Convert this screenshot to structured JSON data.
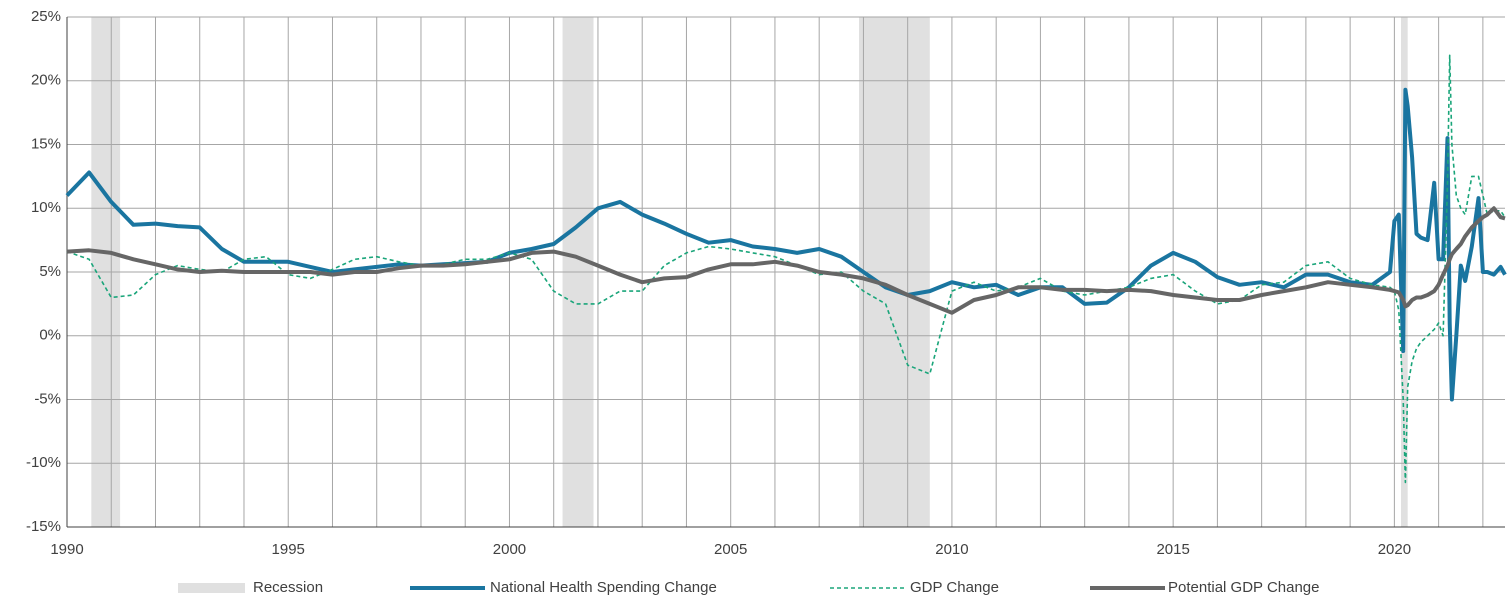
{
  "chart_data": {
    "type": "line",
    "x": [
      1990,
      1990.5,
      1991,
      1991.5,
      1992,
      1992.5,
      1993,
      1993.5,
      1994,
      1994.5,
      1995,
      1995.5,
      1996,
      1996.5,
      1997,
      1997.5,
      1998,
      1998.5,
      1999,
      1999.5,
      2000,
      2000.5,
      2001,
      2001.5,
      2002,
      2002.5,
      2003,
      2003.5,
      2004,
      2004.5,
      2005,
      2005.5,
      2006,
      2006.5,
      2007,
      2007.5,
      2008,
      2008.5,
      2009,
      2009.5,
      2010,
      2010.5,
      2011,
      2011.5,
      2012,
      2012.5,
      2013,
      2013.5,
      2014,
      2014.5,
      2015,
      2015.5,
      2016,
      2016.5,
      2017,
      2017.5,
      2018,
      2018.5,
      2019,
      2019.5,
      2019.9,
      2020,
      2020.1,
      2020.2,
      2020.25,
      2020.3,
      2020.4,
      2020.5,
      2020.6,
      2020.75,
      2020.9,
      2021,
      2021.1,
      2021.2,
      2021.25,
      2021.3,
      2021.4,
      2021.5,
      2021.6,
      2021.75,
      2021.9,
      2022,
      2022.1,
      2022.25,
      2022.4,
      2022.5
    ],
    "series": [
      {
        "name": "National Health Spending Change",
        "color": "#1a75a0",
        "line_width": 4,
        "dashed": false,
        "values": [
          11,
          12.8,
          10.5,
          8.7,
          8.8,
          8.6,
          8.5,
          6.8,
          5.8,
          5.8,
          5.8,
          5.4,
          5.0,
          5.2,
          5.4,
          5.6,
          5.5,
          5.6,
          5.7,
          5.8,
          6.5,
          6.8,
          7.2,
          8.5,
          10.0,
          10.5,
          9.5,
          8.8,
          8.0,
          7.3,
          7.5,
          7.0,
          6.8,
          6.5,
          6.8,
          6.2,
          5.0,
          3.8,
          3.2,
          3.5,
          4.2,
          3.8,
          4.0,
          3.2,
          3.8,
          3.8,
          2.5,
          2.6,
          3.8,
          5.5,
          6.5,
          5.8,
          4.6,
          4.0,
          4.2,
          3.8,
          4.8,
          4.8,
          4.2,
          4.0,
          5.0,
          9.0,
          9.5,
          -1.2,
          19.3,
          18,
          14,
          8,
          7.7,
          7.5,
          12,
          6,
          6,
          15.5,
          1,
          -5,
          0,
          5.5,
          4.3,
          7,
          10.8,
          5,
          5,
          4.8,
          5.4,
          4.8
        ]
      },
      {
        "name": "GDP Change",
        "color": "#1aa57a",
        "line_width": 1.6,
        "dashed": true,
        "values": [
          6.6,
          6,
          3,
          3.2,
          4.8,
          5.5,
          5.2,
          5,
          6,
          6.2,
          4.8,
          4.5,
          5.2,
          6,
          6.2,
          5.8,
          5.5,
          5.6,
          6,
          6,
          6.5,
          6,
          3.5,
          2.5,
          2.5,
          3.5,
          3.5,
          5.5,
          6.5,
          7,
          6.8,
          6.5,
          6.2,
          5.5,
          4.8,
          5,
          3.5,
          2.5,
          -2.3,
          -3,
          3.5,
          4.2,
          3.5,
          3.8,
          4.5,
          3.5,
          3.2,
          3.5,
          3.8,
          4.5,
          4.8,
          3.5,
          2.5,
          2.8,
          4,
          4.2,
          5.5,
          5.8,
          4.5,
          4,
          3.8,
          3.5,
          2,
          -5,
          -11.5,
          -4,
          -2,
          -1,
          -0.5,
          0,
          0.5,
          1,
          0,
          12,
          22,
          15,
          11,
          10,
          9.5,
          12.5,
          12.5,
          11,
          9.5,
          9.8,
          9.8,
          9.3
        ]
      },
      {
        "name": "Potential GDP Change",
        "color": "#666666",
        "line_width": 4,
        "dashed": false,
        "values": [
          6.6,
          6.7,
          6.5,
          6,
          5.6,
          5.2,
          5,
          5.1,
          5,
          5,
          5,
          5,
          4.8,
          5,
          5,
          5.3,
          5.5,
          5.5,
          5.6,
          5.8,
          6,
          6.5,
          6.6,
          6.2,
          5.5,
          4.8,
          4.2,
          4.5,
          4.6,
          5.2,
          5.6,
          5.6,
          5.8,
          5.5,
          5,
          4.8,
          4.5,
          4,
          3.2,
          2.5,
          1.8,
          2.8,
          3.2,
          3.8,
          3.8,
          3.6,
          3.6,
          3.5,
          3.6,
          3.5,
          3.2,
          3,
          2.8,
          2.8,
          3.2,
          3.5,
          3.8,
          4.2,
          4,
          3.8,
          3.6,
          3.5,
          3.4,
          2.8,
          2.3,
          2.4,
          2.8,
          3,
          3,
          3.2,
          3.5,
          4,
          4.8,
          5.5,
          6,
          6.4,
          6.8,
          7.2,
          7.8,
          8.5,
          9,
          9.3,
          9.5,
          10,
          9.3,
          9.2
        ]
      }
    ],
    "recessions": {
      "name": "Recession",
      "color": "#e0e0e0",
      "ranges": [
        [
          1990.55,
          1991.2
        ],
        [
          2001.2,
          2001.9
        ],
        [
          2007.9,
          2009.5
        ],
        [
          2020.15,
          2020.3
        ]
      ]
    },
    "xlim": [
      1990,
      2022.5
    ],
    "xticks": [
      1990,
      1995,
      2000,
      2005,
      2010,
      2015,
      2020
    ],
    "x_grid_step": 1,
    "ylim": [
      -15,
      25
    ],
    "yticks": [
      {
        "value": -15,
        "label": "-15%"
      },
      {
        "value": -10,
        "label": "-10%"
      },
      {
        "value": -5,
        "label": "-5%"
      },
      {
        "value": 0,
        "label": "0%"
      },
      {
        "value": 5,
        "label": "5%"
      },
      {
        "value": 10,
        "label": "10%"
      },
      {
        "value": 15,
        "label": "15%"
      },
      {
        "value": 20,
        "label": "20%"
      },
      {
        "value": 25,
        "label": "25%"
      }
    ],
    "grid": true,
    "legend": "bottom"
  }
}
